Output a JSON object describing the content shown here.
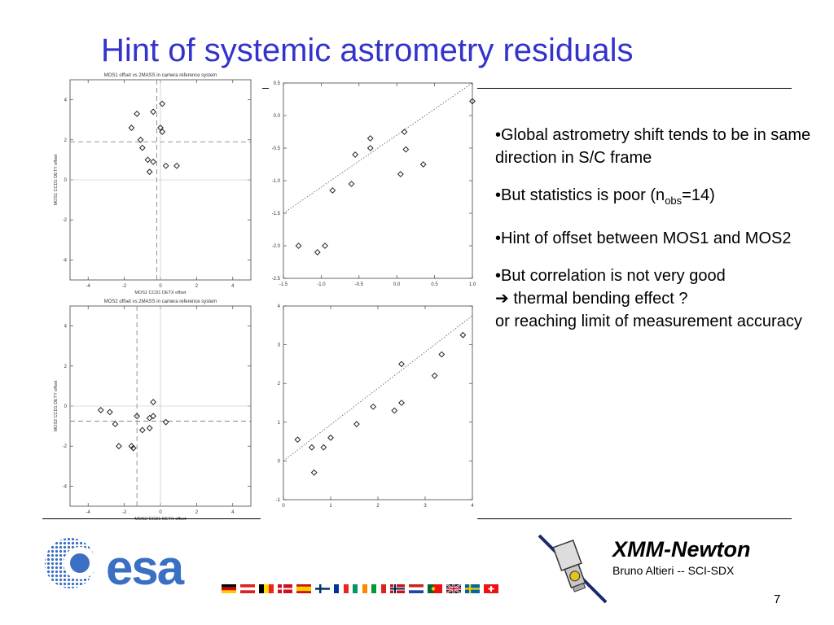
{
  "slide": {
    "title": "Hint of systemic astrometry residuals",
    "page_number": "7"
  },
  "bullets": {
    "b1": "•Global astrometry shift tends to be in same direction in S/C frame",
    "b2_pre": "•But statistics is poor (n",
    "b2_sub": "obs",
    "b2_post": "=14)",
    "b3": "•Hint of offset between MOS1 and MOS2",
    "b4_line1": "•But correlation is not very good",
    "b4_arrow": "➔",
    "b4_line2": " thermal bending effect ?",
    "b4_line3": "or reaching limit of measurement accuracy"
  },
  "footer": {
    "mission": "XMM-Newton",
    "author": "Bruno Altieri -- SCI-SDX",
    "logo_text": "esa"
  },
  "colors": {
    "title": "#3333cc",
    "esa_blue": "#3a6fc4"
  },
  "chart_data": [
    {
      "id": "mos1-scatter",
      "type": "scatter",
      "title": "MOS1  offset vs 2MASS  in  camera reference system",
      "xlabel": "MOS1 CCD1 DETX offset",
      "ylabel": "MOS1 CCD1 DETY offset",
      "xlim": [
        -5,
        5
      ],
      "ylim": [
        -5,
        5
      ],
      "xticks": [
        -4,
        -2,
        0,
        2,
        4
      ],
      "yticks": [
        -4,
        -2,
        0,
        2,
        4
      ],
      "hline": 1.9,
      "vline": -0.2,
      "points": [
        [
          -1.3,
          3.3
        ],
        [
          -0.4,
          3.4
        ],
        [
          0.1,
          3.8
        ],
        [
          -1.6,
          2.6
        ],
        [
          0.0,
          2.6
        ],
        [
          0.1,
          2.4
        ],
        [
          -1.1,
          2.0
        ],
        [
          -1.0,
          1.6
        ],
        [
          -0.7,
          1.0
        ],
        [
          -0.4,
          0.9
        ],
        [
          -0.6,
          0.4
        ],
        [
          0.3,
          0.7
        ],
        [
          0.9,
          0.7
        ]
      ]
    },
    {
      "id": "mos1-fit",
      "type": "scatter",
      "xlim": [
        -1.5,
        1.0
      ],
      "ylim": [
        -2.5,
        0.5
      ],
      "xticks": [
        -1.5,
        -1.0,
        -0.5,
        0.0,
        0.5,
        1.0
      ],
      "yticks": [
        -2.5,
        -2.0,
        -1.5,
        -1.0,
        -0.5,
        0.0,
        0.5
      ],
      "tick_labels_x": [
        "-1.5",
        "-1.0",
        "-0.5",
        "0.0",
        "0.5",
        "1.0"
      ],
      "tick_labels_y": [
        "-2.5",
        "-2.0",
        "-1.5",
        "-1.0",
        "-0.5",
        "0.0",
        "0.5"
      ],
      "fit_line": [
        [
          -1.5,
          -1.5
        ],
        [
          1.0,
          0.5
        ]
      ],
      "points": [
        [
          -1.3,
          -2.0
        ],
        [
          -1.05,
          -2.1
        ],
        [
          -0.95,
          -2.0
        ],
        [
          -0.85,
          -1.15
        ],
        [
          -0.6,
          -1.05
        ],
        [
          -0.55,
          -0.6
        ],
        [
          -0.35,
          -0.5
        ],
        [
          -0.35,
          -0.35
        ],
        [
          0.05,
          -0.9
        ],
        [
          0.1,
          -0.25
        ],
        [
          0.12,
          -0.52
        ],
        [
          0.35,
          -0.75
        ],
        [
          1.0,
          0.22
        ]
      ]
    },
    {
      "id": "mos2-scatter",
      "type": "scatter",
      "title": "MOS2  offset vs 2MASS  in  camera reference system",
      "xlabel": "MOS2 CCD1 DETX offset",
      "ylabel": "MOS2 CCD1 DETY offset",
      "xlim": [
        -5,
        5
      ],
      "ylim": [
        -5,
        5
      ],
      "xticks": [
        -4,
        -2,
        0,
        2,
        4
      ],
      "yticks": [
        -4,
        -2,
        0,
        2,
        4
      ],
      "hline": -0.75,
      "vline": -1.3,
      "points": [
        [
          -3.3,
          -0.2
        ],
        [
          -2.8,
          -0.3
        ],
        [
          -2.5,
          -0.9
        ],
        [
          -2.3,
          -2.0
        ],
        [
          -1.6,
          -2.0
        ],
        [
          -1.5,
          -2.1
        ],
        [
          -1.3,
          -0.5
        ],
        [
          -1.0,
          -1.2
        ],
        [
          -0.6,
          -0.6
        ],
        [
          -0.6,
          -1.1
        ],
        [
          -0.4,
          -0.5
        ],
        [
          -0.4,
          0.2
        ],
        [
          0.3,
          -0.8
        ]
      ]
    },
    {
      "id": "mos2-fit",
      "type": "scatter",
      "xlim": [
        0,
        4
      ],
      "ylim": [
        -1,
        4
      ],
      "xticks": [
        0,
        1,
        2,
        3,
        4
      ],
      "yticks": [
        -1,
        0,
        1,
        2,
        3,
        4
      ],
      "tick_labels_x": [
        "0",
        "1",
        "2",
        "3",
        "4"
      ],
      "tick_labels_y": [
        "-1",
        "0",
        "1",
        "2",
        "3",
        "4"
      ],
      "fit_line": [
        [
          0,
          0
        ],
        [
          4,
          3.75
        ]
      ],
      "points": [
        [
          0.3,
          0.55
        ],
        [
          0.6,
          0.35
        ],
        [
          0.65,
          -0.3
        ],
        [
          0.85,
          0.35
        ],
        [
          1.0,
          0.6
        ],
        [
          1.55,
          0.95
        ],
        [
          1.9,
          1.4
        ],
        [
          2.35,
          1.3
        ],
        [
          2.5,
          1.5
        ],
        [
          2.5,
          2.5
        ],
        [
          3.2,
          2.2
        ],
        [
          3.35,
          2.75
        ],
        [
          3.8,
          3.25
        ]
      ]
    }
  ]
}
